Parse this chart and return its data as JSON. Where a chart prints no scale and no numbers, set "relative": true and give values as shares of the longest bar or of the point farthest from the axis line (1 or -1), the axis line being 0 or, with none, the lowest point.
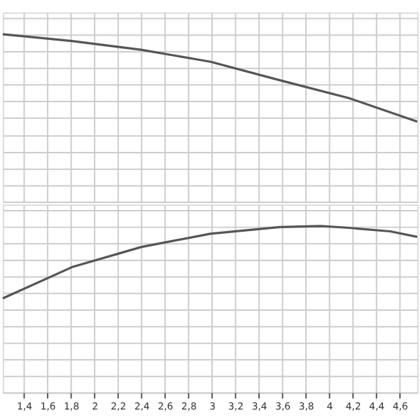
{
  "chart_data": [
    {
      "type": "line",
      "relative": true,
      "x": [
        1.22,
        1.81,
        2.4,
        2.99,
        3.58,
        4.17,
        4.75
      ],
      "xlim": [
        1.22,
        4.75
      ],
      "xticks": [
        {
          "value": 1.4,
          "label": null
        },
        {
          "value": 1.6,
          "label": null
        },
        {
          "value": 1.8,
          "label": null
        },
        {
          "value": 2,
          "label": null
        },
        {
          "value": 2.2,
          "label": null
        },
        {
          "value": 2.4,
          "label": null
        },
        {
          "value": 2.6,
          "label": null
        },
        {
          "value": 2.8,
          "label": null
        },
        {
          "value": 3,
          "label": null
        },
        {
          "value": 3.2,
          "label": null
        },
        {
          "value": 3.4,
          "label": null
        },
        {
          "value": 3.6,
          "label": null
        },
        {
          "value": 3.8,
          "label": null
        },
        {
          "value": 4,
          "label": null
        },
        {
          "value": 4.2,
          "label": null
        },
        {
          "value": 4.4,
          "label": null
        },
        {
          "value": 4.6,
          "label": null
        }
      ],
      "tick_labels": false,
      "grid": true,
      "marker": "none",
      "series": [
        {
          "color": "#555555",
          "values": [
            1,
            0.959,
            0.907,
            0.835,
            0.725,
            0.618,
            0.478
          ]
        }
      ]
    },
    {
      "type": "line",
      "relative": true,
      "x": [
        1.22,
        1.81,
        2.4,
        2.99,
        3.58,
        3.93,
        4.17,
        4.52,
        4.75
      ],
      "xlim": [
        1.22,
        4.75
      ],
      "xticks": [
        {
          "value": 1.4,
          "label": "1,4"
        },
        {
          "value": 1.6,
          "label": "1,6"
        },
        {
          "value": 1.8,
          "label": "1,8"
        },
        {
          "value": 2,
          "label": "2"
        },
        {
          "value": 2.2,
          "label": "2,2"
        },
        {
          "value": 2.4,
          "label": "2,4"
        },
        {
          "value": 2.6,
          "label": "2,6"
        },
        {
          "value": 2.8,
          "label": "2,8"
        },
        {
          "value": 3,
          "label": "3"
        },
        {
          "value": 3.2,
          "label": "3,2"
        },
        {
          "value": 3.4,
          "label": "3,4"
        },
        {
          "value": 3.6,
          "label": "3,6"
        },
        {
          "value": 3.8,
          "label": "3,8"
        },
        {
          "value": 4,
          "label": "4"
        },
        {
          "value": 4.2,
          "label": "4,2"
        },
        {
          "value": 4.4,
          "label": "4,4"
        },
        {
          "value": 4.6,
          "label": "4,6"
        }
      ],
      "tick_labels": "x",
      "grid": true,
      "marker": "none",
      "series": [
        {
          "color": "#555555",
          "values": [
            0.565,
            0.753,
            0.874,
            0.954,
            0.994,
            1,
            0.989,
            0.968,
            0.935
          ]
        }
      ]
    }
  ]
}
